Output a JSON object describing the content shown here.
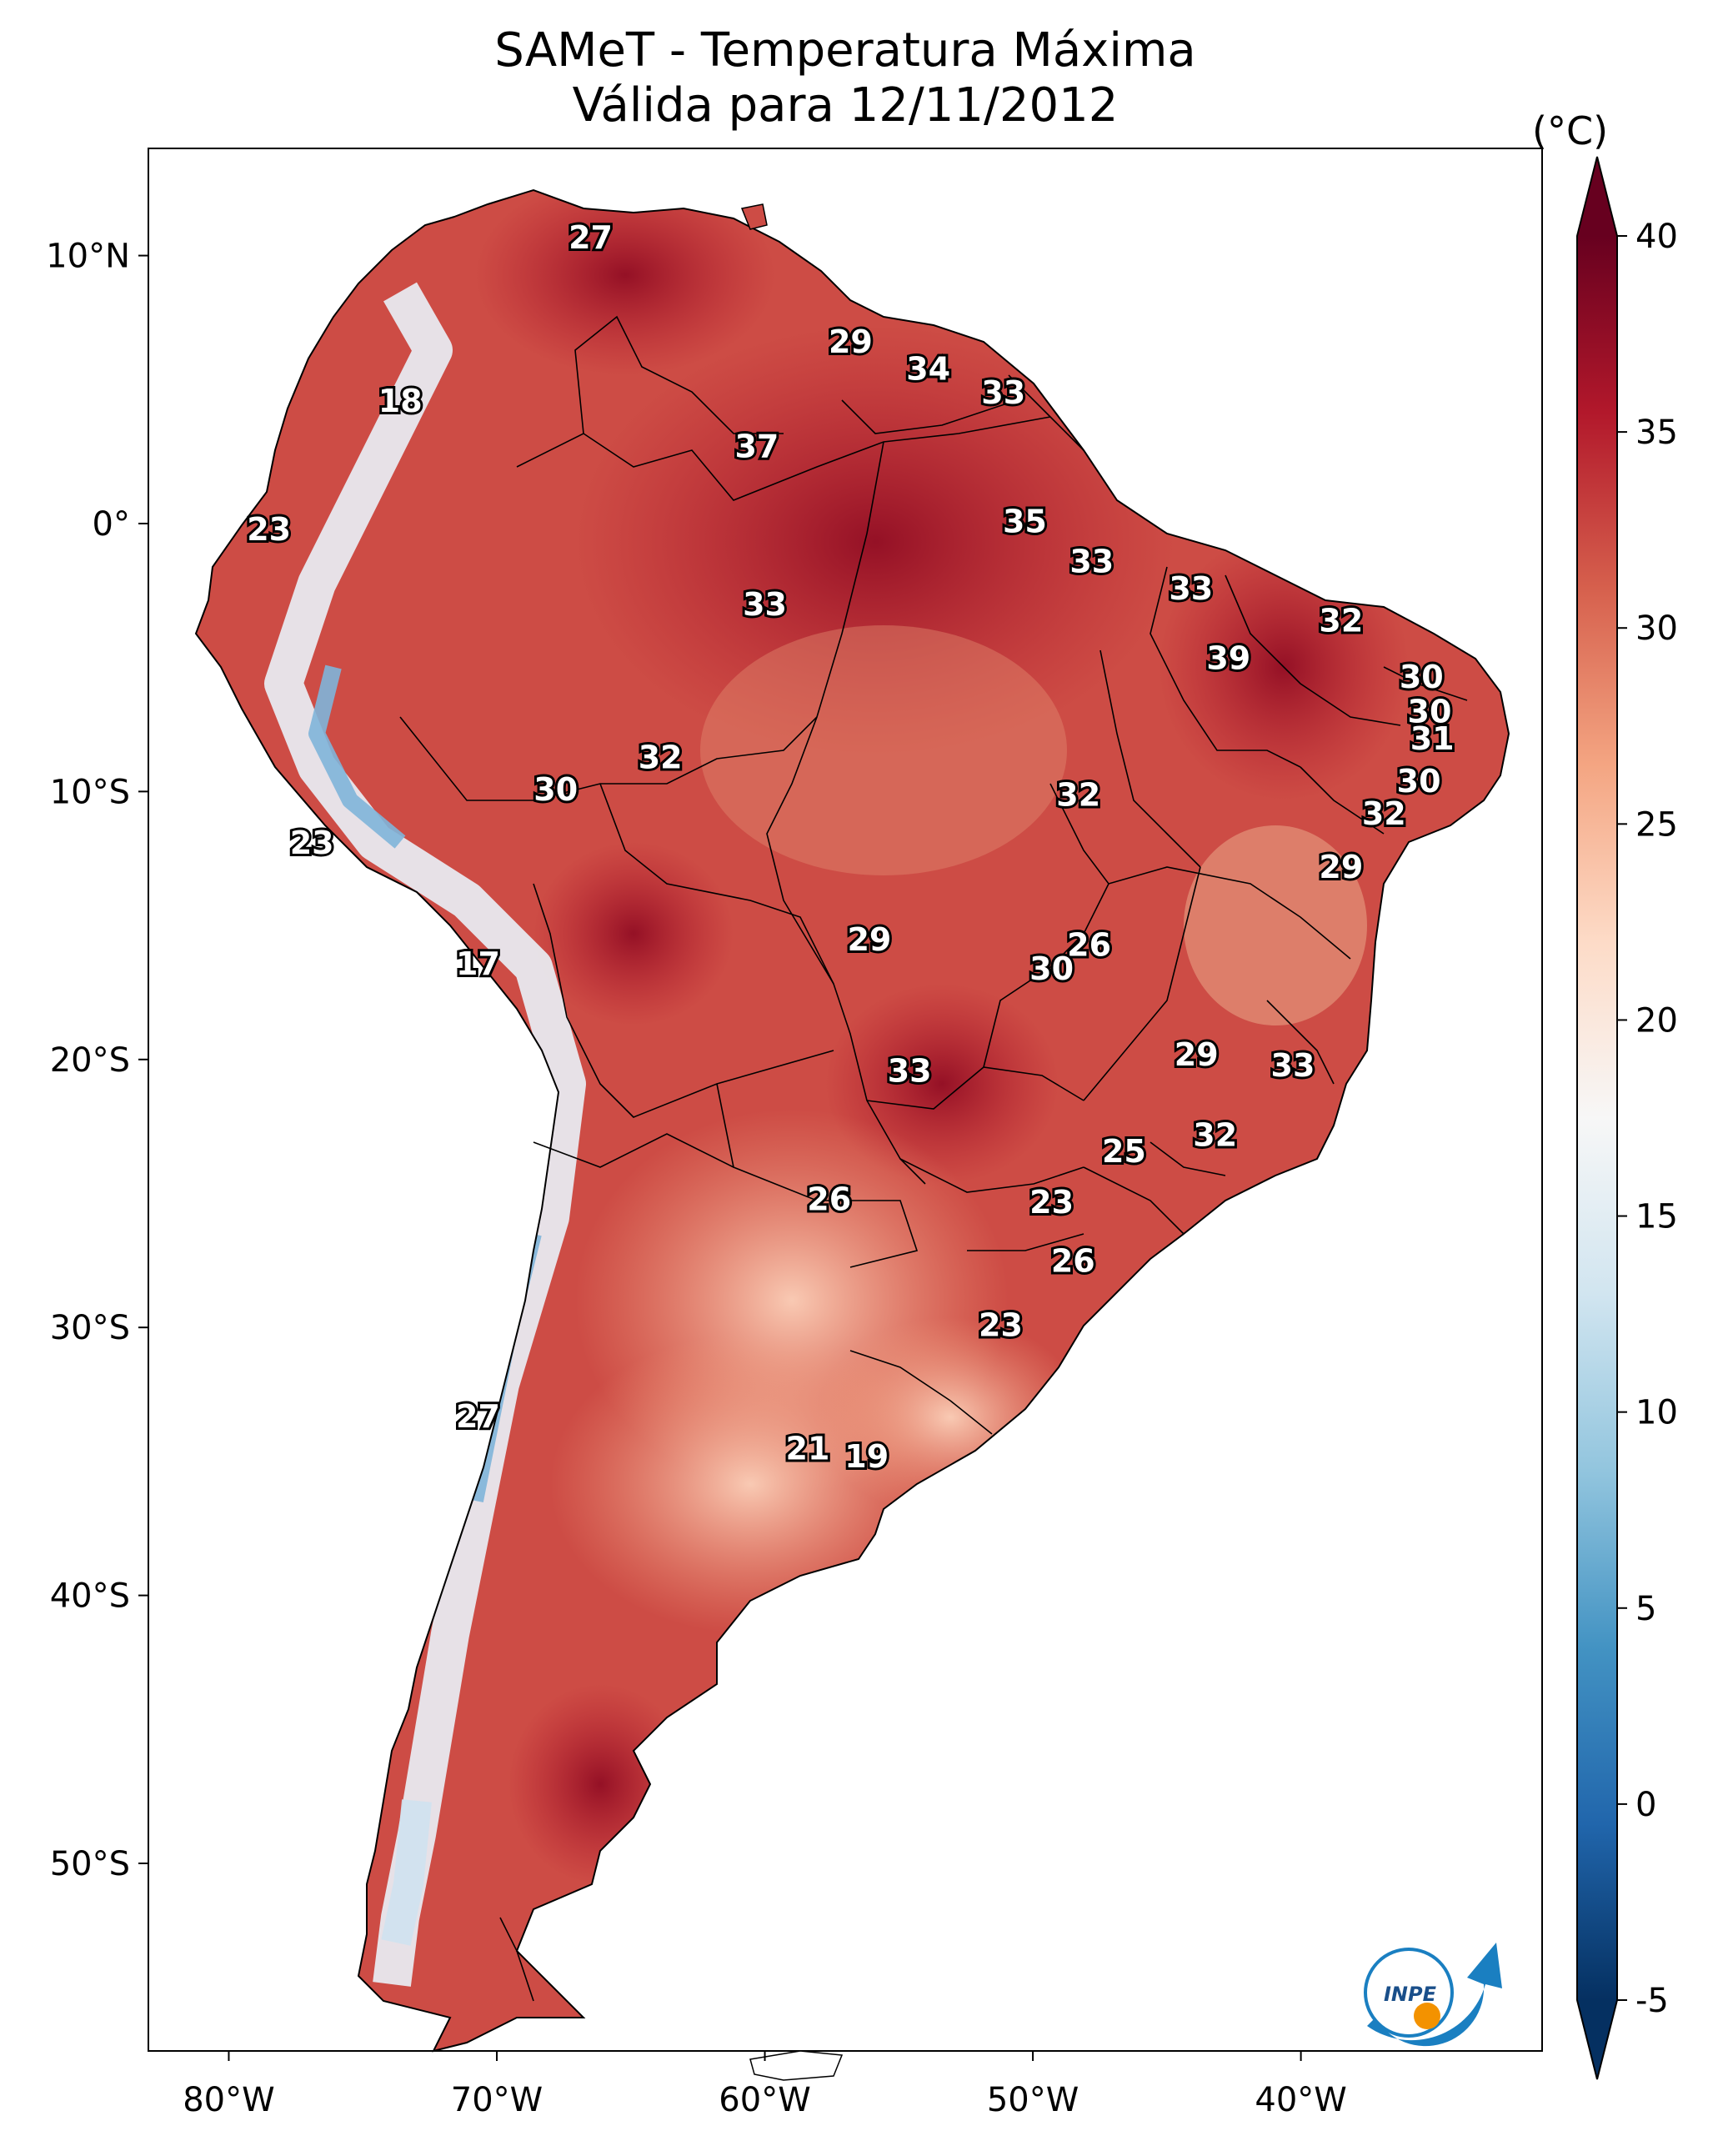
{
  "title": {
    "line1": "SAMeT - Temperatura Máxima",
    "line2": "Válida para 12/11/2012"
  },
  "map": {
    "extent": {
      "lon_min": -83,
      "lon_max": -31,
      "lat_min": -57,
      "lat_max": 14
    },
    "lon_ticks": [
      {
        "lon": -80,
        "label": "80°W"
      },
      {
        "lon": -70,
        "label": "70°W"
      },
      {
        "lon": -60,
        "label": "60°W"
      },
      {
        "lon": -50,
        "label": "50°W"
      },
      {
        "lon": -40,
        "label": "40°W"
      }
    ],
    "lat_ticks": [
      {
        "lat": 10,
        "label": "10°N"
      },
      {
        "lat": 0,
        "label": "0°"
      },
      {
        "lat": -10,
        "label": "10°S"
      },
      {
        "lat": -20,
        "label": "20°S"
      },
      {
        "lat": -30,
        "label": "30°S"
      },
      {
        "lat": -40,
        "label": "40°S"
      },
      {
        "lat": -50,
        "label": "50°S"
      }
    ],
    "station_values": [
      {
        "lon": -66.5,
        "lat": 10.6,
        "value": "27"
      },
      {
        "lon": -56.8,
        "lat": 6.7,
        "value": "29"
      },
      {
        "lon": -53.9,
        "lat": 5.7,
        "value": "34"
      },
      {
        "lon": -51.1,
        "lat": 4.8,
        "value": "33"
      },
      {
        "lon": -73.6,
        "lat": 4.5,
        "value": "18"
      },
      {
        "lon": -60.3,
        "lat": 2.8,
        "value": "37"
      },
      {
        "lon": -78.5,
        "lat": -0.3,
        "value": "23"
      },
      {
        "lon": -50.3,
        "lat": 0.0,
        "value": "35"
      },
      {
        "lon": -47.8,
        "lat": -1.5,
        "value": "33"
      },
      {
        "lon": -60.0,
        "lat": -3.1,
        "value": "33"
      },
      {
        "lon": -44.1,
        "lat": -2.5,
        "value": "33"
      },
      {
        "lon": -38.5,
        "lat": -3.7,
        "value": "32"
      },
      {
        "lon": -42.7,
        "lat": -5.1,
        "value": "39"
      },
      {
        "lon": -35.5,
        "lat": -5.8,
        "value": "30"
      },
      {
        "lon": -35.2,
        "lat": -7.1,
        "value": "30"
      },
      {
        "lon": -35.1,
        "lat": -8.1,
        "value": "31"
      },
      {
        "lon": -63.9,
        "lat": -8.8,
        "value": "32"
      },
      {
        "lon": -67.8,
        "lat": -10.0,
        "value": "30"
      },
      {
        "lon": -48.3,
        "lat": -10.2,
        "value": "32"
      },
      {
        "lon": -35.6,
        "lat": -9.7,
        "value": "30"
      },
      {
        "lon": -36.9,
        "lat": -10.9,
        "value": "32"
      },
      {
        "lon": -76.9,
        "lat": -12.0,
        "value": "23"
      },
      {
        "lon": -38.5,
        "lat": -12.9,
        "value": "29"
      },
      {
        "lon": -56.1,
        "lat": -15.6,
        "value": "29"
      },
      {
        "lon": -47.9,
        "lat": -15.8,
        "value": "26"
      },
      {
        "lon": -49.3,
        "lat": -16.7,
        "value": "30"
      },
      {
        "lon": -70.7,
        "lat": -16.5,
        "value": "17"
      },
      {
        "lon": -43.9,
        "lat": -19.9,
        "value": "29"
      },
      {
        "lon": -40.3,
        "lat": -20.3,
        "value": "33"
      },
      {
        "lon": -54.6,
        "lat": -20.5,
        "value": "33"
      },
      {
        "lon": -43.2,
        "lat": -22.9,
        "value": "32"
      },
      {
        "lon": -46.6,
        "lat": -23.5,
        "value": "25"
      },
      {
        "lon": -57.6,
        "lat": -25.3,
        "value": "26"
      },
      {
        "lon": -49.3,
        "lat": -25.4,
        "value": "23"
      },
      {
        "lon": -48.5,
        "lat": -27.6,
        "value": "26"
      },
      {
        "lon": -51.2,
        "lat": -30.0,
        "value": "23"
      },
      {
        "lon": -70.7,
        "lat": -33.4,
        "value": "27"
      },
      {
        "lon": -58.4,
        "lat": -34.6,
        "value": "21"
      },
      {
        "lon": -56.2,
        "lat": -34.9,
        "value": "19"
      }
    ]
  },
  "colorbar": {
    "unit": "(°C)",
    "vmin": -5,
    "vmax": 40,
    "ticks": [
      {
        "value": 40,
        "label": "40"
      },
      {
        "value": 35,
        "label": "35"
      },
      {
        "value": 30,
        "label": "30"
      },
      {
        "value": 25,
        "label": "25"
      },
      {
        "value": 20,
        "label": "20"
      },
      {
        "value": 15,
        "label": "15"
      },
      {
        "value": 10,
        "label": "10"
      },
      {
        "value": 5,
        "label": "5"
      },
      {
        "value": 0,
        "label": "0"
      },
      {
        "value": -5,
        "label": "-5"
      }
    ],
    "colors": [
      "#053061",
      "#2166ac",
      "#4393c3",
      "#92c5de",
      "#d1e5f0",
      "#f7f7f7",
      "#fddbc7",
      "#f4a582",
      "#d6604d",
      "#b2182b",
      "#67001f"
    ]
  },
  "logo": {
    "text": "INPE",
    "arc_color": "#1a7fc1",
    "dot_color": "#f39200"
  }
}
